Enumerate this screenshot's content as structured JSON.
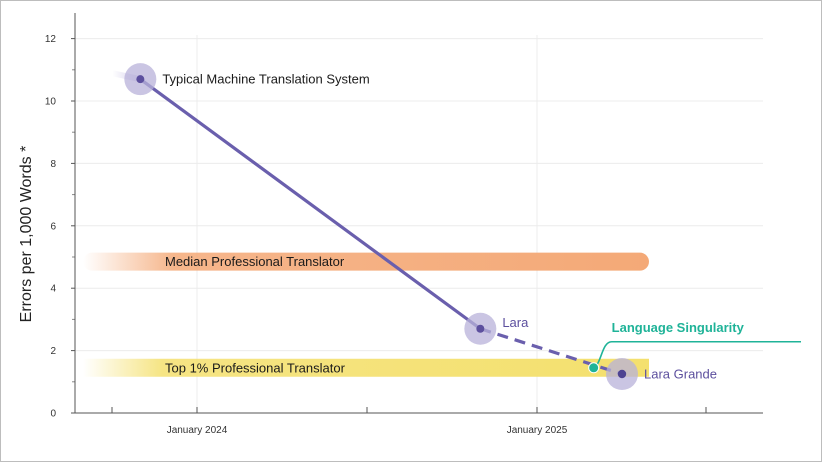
{
  "chart_data": {
    "type": "line",
    "ylabel": "Errors per 1,000 Words *",
    "ylim": [
      0,
      12
    ],
    "y_ticks": [
      "0",
      "2",
      "4",
      "6",
      "8",
      "10",
      "12"
    ],
    "x_tick_labels": [
      "January 2024",
      "January 2025"
    ],
    "grid": true,
    "colors": {
      "line": "#6a5fad",
      "halo": "#b8b1da",
      "median_band": "#f4a977",
      "top_band": "#f4e06e",
      "singularity": "#1fb398"
    },
    "bands": [
      {
        "label": "Median Professional Translator",
        "value": 4.85
      },
      {
        "label": "Top 1% Professional Translator",
        "value": 1.45
      }
    ],
    "points": [
      {
        "label": "Typical Machine Translation System",
        "x": "2023-11",
        "y": 10.7
      },
      {
        "label": "Lara",
        "x": "2024-11",
        "y": 2.7
      },
      {
        "label": "Lara Grande",
        "x": "2025-04",
        "y": 1.25
      }
    ],
    "annotation": {
      "label": "Language Singularity",
      "x": "2025-03",
      "y": 1.45
    }
  }
}
